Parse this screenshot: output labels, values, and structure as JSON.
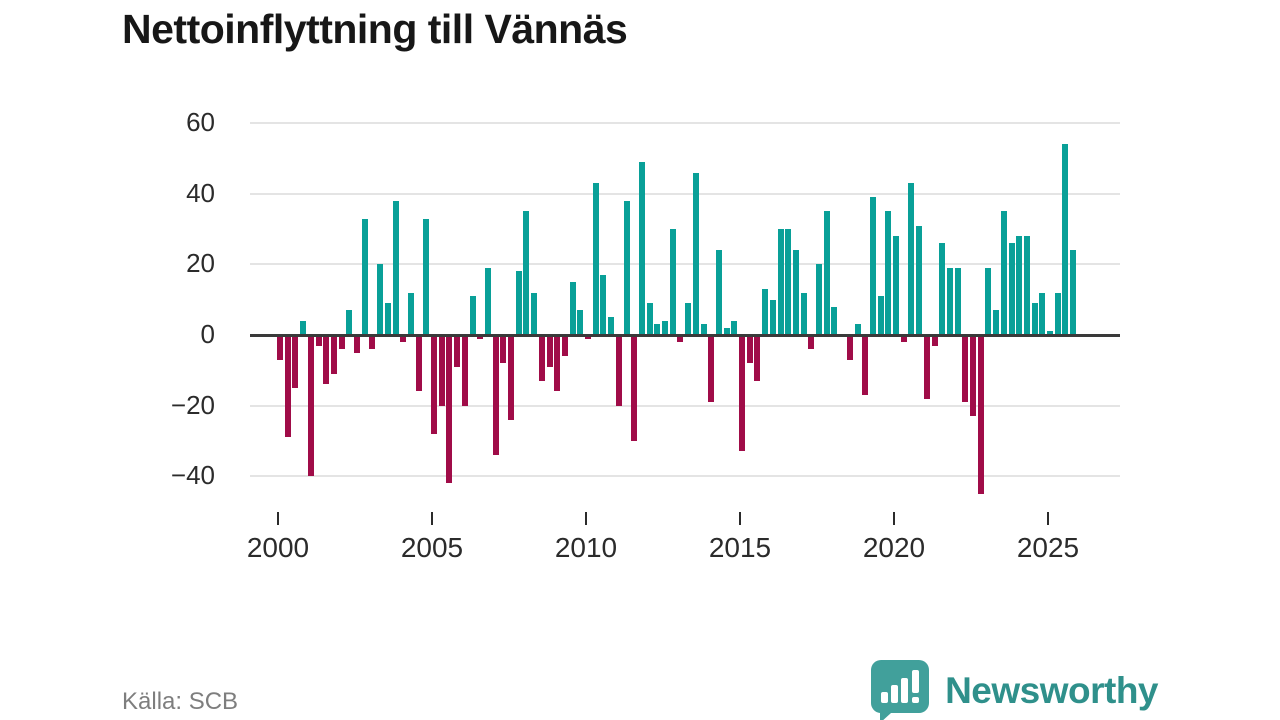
{
  "header": {
    "title": "Nettoinflyttning till Vännäs"
  },
  "footer": {
    "source": "Källa: SCB",
    "brand": "Newsworthy"
  },
  "colors": {
    "positive": "#09a098",
    "negative": "#a00c48",
    "gridline": "#e4e4e4",
    "zero_line": "#3a3a3a",
    "axis_text": "#2b2b2b",
    "source_text": "#7e7e7e",
    "brand_text": "#2f908b",
    "logo_icon": "#41a09b"
  },
  "chart_data": {
    "type": "bar",
    "title": "Nettoinflyttning till Vännäs",
    "frequency": "quarterly",
    "start_year": 2000,
    "start_quarter": 1,
    "values": [
      -7,
      -29,
      -15,
      4,
      -40,
      -3,
      -14,
      -11,
      -4,
      7,
      -5,
      33,
      -4,
      20,
      9,
      38,
      -2,
      12,
      -16,
      33,
      -28,
      -20,
      -42,
      -9,
      -20,
      11,
      -1,
      19,
      -34,
      -8,
      -24,
      18,
      35,
      12,
      -13,
      -9,
      -16,
      -6,
      15,
      7,
      -1,
      43,
      17,
      5,
      -20,
      38,
      -30,
      49,
      9,
      3,
      4,
      30,
      -2,
      9,
      46,
      3,
      -19,
      24,
      2,
      4,
      -33,
      -8,
      -13,
      13,
      10,
      30,
      30,
      24,
      12,
      -4,
      20,
      35,
      8,
      0,
      -7,
      3,
      -17,
      39,
      11,
      35,
      28,
      -2,
      43,
      31,
      -18,
      -3,
      26,
      19,
      19,
      -19,
      -23,
      -45,
      19,
      7,
      35,
      26,
      28,
      28,
      9,
      12,
      1,
      12,
      54,
      24
    ],
    "yticks": [
      60,
      40,
      20,
      0,
      -20,
      -40
    ],
    "ylim": [
      -48,
      66
    ],
    "xticks": [
      2000,
      2005,
      2010,
      2015,
      2020,
      2025
    ],
    "grid": "horizontal",
    "legend": "none",
    "source": "Källa: SCB"
  }
}
